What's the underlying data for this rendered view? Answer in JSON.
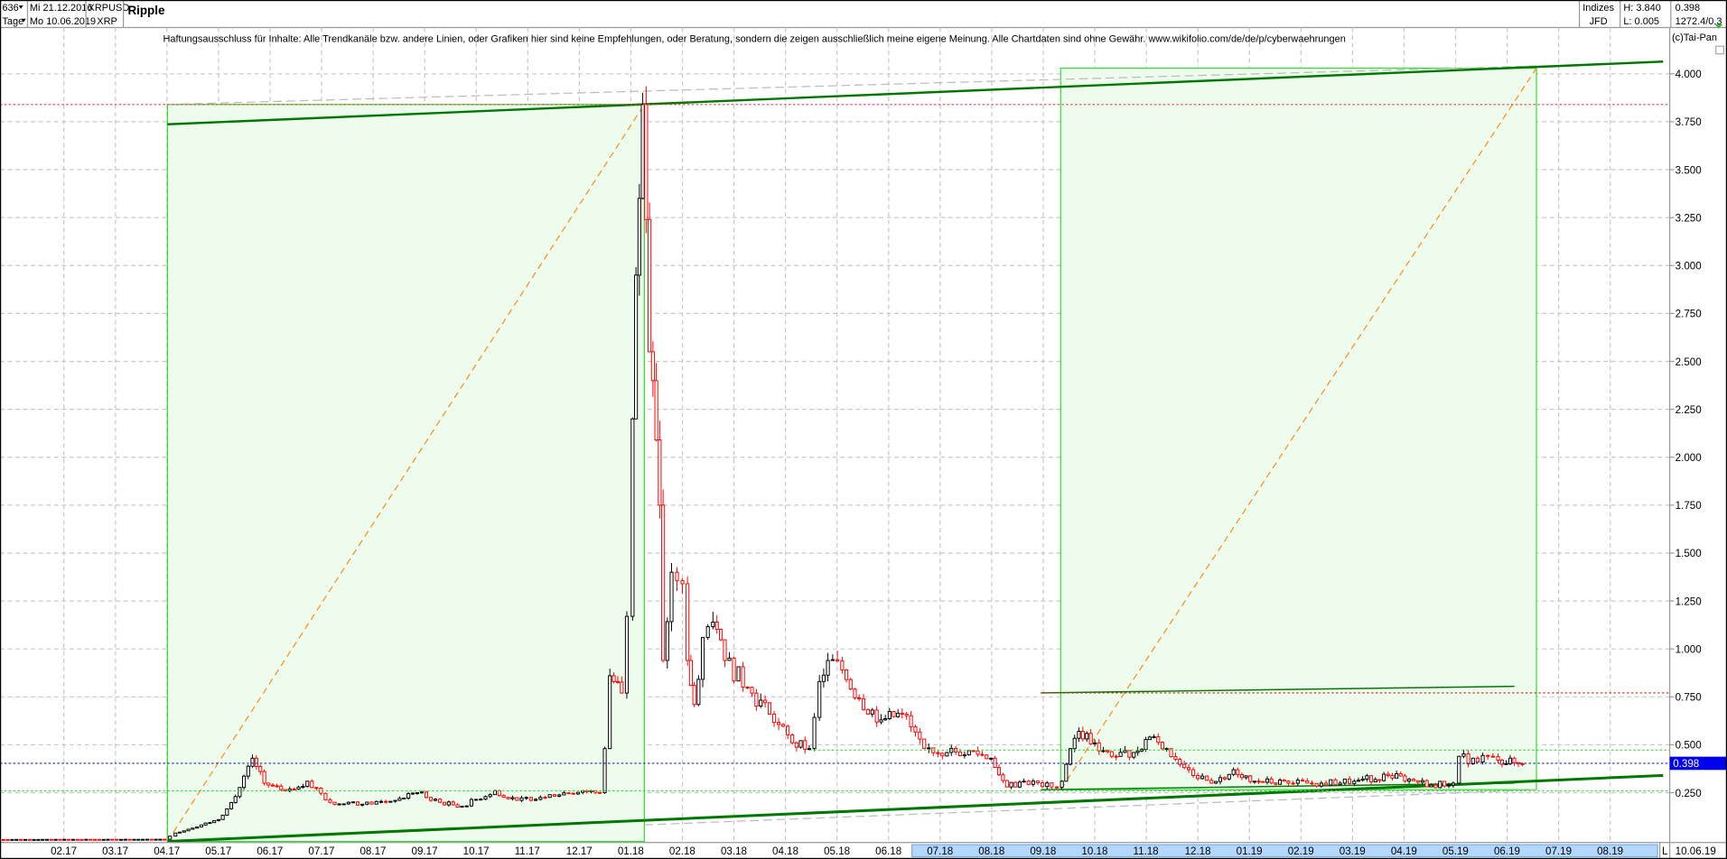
{
  "header": {
    "count": "636",
    "period": "Tage",
    "start_date": "Mi 21.12.2016",
    "end_date": "Mo 10.06.2019",
    "symbol": "XRPUSD",
    "currency": "XRP",
    "title": "Ripple",
    "market": "Indizes",
    "market_sub": "JFD",
    "high": "H: 3.840",
    "low": "L: 0.005",
    "last": "0.398",
    "extra": "1272.4/0.3"
  },
  "disclaimer": "Haftungsausschluss für Inhalte: Alle Trendkanäle bzw. andere Linien, oder Grafiken hier sind keine Empfehlungen, oder Beratung, sondern die zeigen ausschließlich meine eigene Meinung. Alle Chartdaten sind ohne Gewähr.  www.wikifolio.com/de/de/p/cyberwaehrungen",
  "copyright": "(c)Tai-Pan",
  "footer": {
    "scale_mode": "L",
    "last_date": "10.06.19"
  },
  "colors": {
    "up": "#000000",
    "down": "#ff0000",
    "zone_fill": "#eefcee",
    "zone_stroke": "#33dd33",
    "trend": "#007700",
    "fib": "#ff8c1a",
    "last_marker": "#0000ee"
  },
  "chart_data": {
    "type": "candlestick",
    "title": "Ripple",
    "xlabel": "",
    "ylabel": "",
    "ylim": [
      0,
      4.1
    ],
    "y_ticks": [
      "4.000",
      "3.750",
      "3.500",
      "3.250",
      "3.000",
      "2.750",
      "2.500",
      "2.250",
      "2.000",
      "1.750",
      "1.500",
      "1.250",
      "1.000",
      "0.750",
      "0.500",
      "0.250"
    ],
    "x_ticks": [
      "02.17",
      "03.17",
      "04.17",
      "05.17",
      "06.17",
      "07.17",
      "08.17",
      "09.17",
      "10.17",
      "11.17",
      "12.17",
      "01.18",
      "02.18",
      "03.18",
      "04.18",
      "05.18",
      "06.18",
      "07.18",
      "08.18",
      "09.18",
      "10.18",
      "11.18",
      "12.18",
      "01.19",
      "02.19",
      "03.19",
      "04.19",
      "05.19",
      "06.19",
      "07.19",
      "08.19"
    ],
    "grid": true,
    "last_value": "0.398",
    "high": 3.84,
    "low": 0.005,
    "horizontal_levels": [
      3.84,
      0.77,
      0.47,
      0.398,
      0.27
    ],
    "closes": [
      [
        "2016-12-21",
        0.006
      ],
      [
        "2017-03-30",
        0.007
      ],
      [
        "2017-04-06",
        0.04
      ],
      [
        "2017-05-01",
        0.11
      ],
      [
        "2017-05-11",
        0.23
      ],
      [
        "2017-05-21",
        0.43
      ],
      [
        "2017-05-28",
        0.3
      ],
      [
        "2017-06-10",
        0.26
      ],
      [
        "2017-06-23",
        0.31
      ],
      [
        "2017-07-06",
        0.2
      ],
      [
        "2017-07-25",
        0.19
      ],
      [
        "2017-08-14",
        0.21
      ],
      [
        "2017-08-27",
        0.25
      ],
      [
        "2017-09-10",
        0.2
      ],
      [
        "2017-09-23",
        0.18
      ],
      [
        "2017-10-12",
        0.26
      ],
      [
        "2017-10-25",
        0.21
      ],
      [
        "2017-11-14",
        0.24
      ],
      [
        "2017-12-03",
        0.26
      ],
      [
        "2017-12-13",
        0.25
      ],
      [
        "2017-12-16",
        0.48
      ],
      [
        "2017-12-19",
        0.86
      ],
      [
        "2017-12-26",
        0.77
      ],
      [
        "2017-12-29",
        1.17
      ],
      [
        "2018-01-02",
        2.2
      ],
      [
        "2018-01-04",
        2.95
      ],
      [
        "2018-01-06",
        3.35
      ],
      [
        "2018-01-08",
        3.84
      ],
      [
        "2018-01-10",
        3.24
      ],
      [
        "2018-01-12",
        2.55
      ],
      [
        "2018-01-16",
        2.09
      ],
      [
        "2018-01-18",
        1.75
      ],
      [
        "2018-01-20",
        0.94
      ],
      [
        "2018-01-25",
        1.4
      ],
      [
        "2018-02-01",
        1.34
      ],
      [
        "2018-02-04",
        0.94
      ],
      [
        "2018-02-08",
        0.71
      ],
      [
        "2018-02-13",
        1.06
      ],
      [
        "2018-02-19",
        1.14
      ],
      [
        "2018-02-26",
        0.94
      ],
      [
        "2018-03-09",
        0.8
      ],
      [
        "2018-03-22",
        0.66
      ],
      [
        "2018-04-05",
        0.51
      ],
      [
        "2018-04-15",
        0.48
      ],
      [
        "2018-04-21",
        0.83
      ],
      [
        "2018-04-26",
        0.94
      ],
      [
        "2018-05-04",
        0.89
      ],
      [
        "2018-05-14",
        0.74
      ],
      [
        "2018-05-27",
        0.63
      ],
      [
        "2018-06-09",
        0.66
      ],
      [
        "2018-06-22",
        0.48
      ],
      [
        "2018-07-05",
        0.46
      ],
      [
        "2018-07-18",
        0.47
      ],
      [
        "2018-07-31",
        0.43
      ],
      [
        "2018-08-10",
        0.28
      ],
      [
        "2018-08-20",
        0.31
      ],
      [
        "2018-09-06",
        0.28
      ],
      [
        "2018-09-12",
        0.31
      ],
      [
        "2018-09-17",
        0.48
      ],
      [
        "2018-09-22",
        0.57
      ],
      [
        "2018-10-01",
        0.51
      ],
      [
        "2018-10-11",
        0.44
      ],
      [
        "2018-10-24",
        0.46
      ],
      [
        "2018-11-03",
        0.54
      ],
      [
        "2018-11-13",
        0.48
      ],
      [
        "2018-11-26",
        0.37
      ],
      [
        "2018-12-09",
        0.3
      ],
      [
        "2018-12-22",
        0.37
      ],
      [
        "2019-01-04",
        0.31
      ],
      [
        "2019-01-24",
        0.3
      ],
      [
        "2019-02-13",
        0.3
      ],
      [
        "2019-03-02",
        0.31
      ],
      [
        "2019-03-22",
        0.34
      ],
      [
        "2019-04-04",
        0.32
      ],
      [
        "2019-04-17",
        0.29
      ],
      [
        "2019-04-30",
        0.3
      ],
      [
        "2019-05-03",
        0.44
      ],
      [
        "2019-05-14",
        0.41
      ],
      [
        "2019-05-20",
        0.44
      ],
      [
        "2019-05-26",
        0.42
      ],
      [
        "2019-06-10",
        0.398
      ]
    ]
  }
}
